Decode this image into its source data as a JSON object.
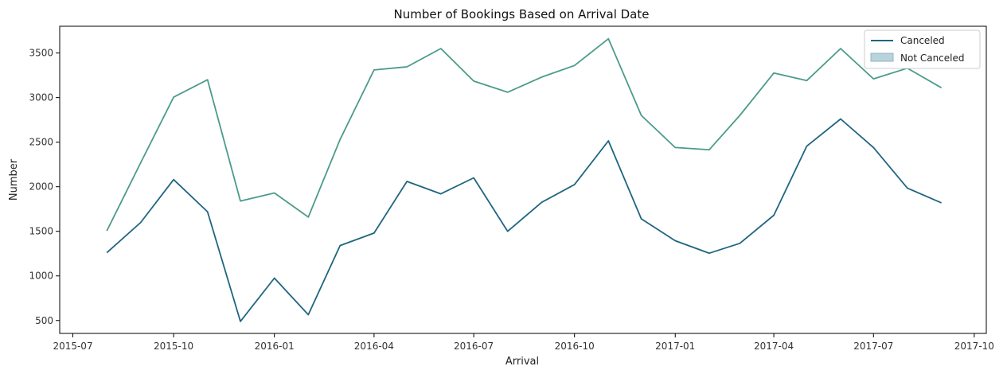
{
  "chart_data": {
    "type": "line",
    "title": "Number of Bookings Based on Arrival Date",
    "xlabel": "Arrival",
    "ylabel": "Number",
    "x": [
      "2015-08-01",
      "2015-09-01",
      "2015-10-01",
      "2015-11-01",
      "2015-12-01",
      "2016-01-01",
      "2016-02-01",
      "2016-03-01",
      "2016-04-01",
      "2016-05-01",
      "2016-06-01",
      "2016-07-01",
      "2016-08-01",
      "2016-09-01",
      "2016-10-01",
      "2016-11-01",
      "2016-12-01",
      "2017-01-01",
      "2017-02-01",
      "2017-03-01",
      "2017-04-01",
      "2017-05-01",
      "2017-06-01",
      "2017-07-01",
      "2017-08-01",
      "2017-09-01"
    ],
    "series": [
      {
        "name": "Canceled",
        "color": "#1f6680",
        "values": [
          1260,
          1600,
          2080,
          1720,
          490,
          975,
          565,
          1340,
          1480,
          2060,
          1920,
          2100,
          1500,
          1825,
          2025,
          2515,
          1640,
          1395,
          1255,
          1365,
          1680,
          2455,
          2760,
          2440,
          1985,
          1820
        ]
      },
      {
        "name": "Not Canceled",
        "color": "#4a9b8a",
        "values": [
          1505,
          2270,
          3005,
          3200,
          1840,
          1930,
          1660,
          2530,
          3310,
          3345,
          3550,
          3185,
          3060,
          3230,
          3360,
          3660,
          2800,
          2440,
          2415,
          2800,
          3275,
          3190,
          3550,
          3210,
          3330,
          3110
        ]
      }
    ],
    "legend": {
      "position": "upper-right",
      "entries": [
        {
          "label": "Canceled",
          "style": "line",
          "color": "#1f6680"
        },
        {
          "label": "Not Canceled",
          "style": "patch",
          "color": "#b9d3dc"
        }
      ]
    },
    "xticks": [
      "2015-07",
      "2015-10",
      "2016-01",
      "2016-04",
      "2016-07",
      "2016-10",
      "2017-01",
      "2017-04",
      "2017-07",
      "2017-10"
    ],
    "yticks": [
      500,
      1000,
      1500,
      2000,
      2500,
      3000,
      3500
    ],
    "xlim": [
      "2015-06-19",
      "2017-10-12"
    ],
    "ylim": [
      355,
      3800
    ],
    "grid": false
  }
}
